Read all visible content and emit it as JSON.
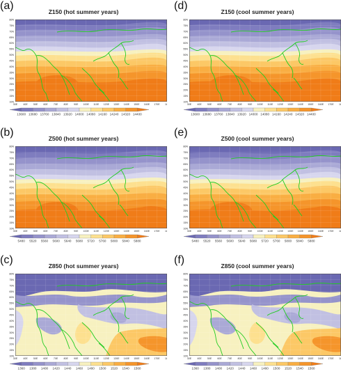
{
  "lat_labels": [
    "10N",
    "15N",
    "20N",
    "25N",
    "30N",
    "35N",
    "40N",
    "45N",
    "50N",
    "55N",
    "60N",
    "65N",
    "70N",
    "75N",
    "80N"
  ],
  "lon_labels": [
    "30E",
    "40E",
    "50E",
    "60E",
    "70E",
    "80E",
    "90E",
    "100E",
    "110E",
    "120E",
    "130E",
    "140E",
    "150E",
    "160E",
    "170E",
    "180"
  ],
  "panels": [
    {
      "letter": "(a)",
      "title": "Z150 (hot summer years)",
      "ticks": [
        "13600",
        "13680",
        "13760",
        "13840",
        "13920",
        "14000",
        "14080",
        "14160",
        "14240",
        "14320",
        "14400"
      ],
      "field": "z150"
    },
    {
      "letter": "(d)",
      "title": "Z150 (cool summer years)",
      "ticks": [
        "13600",
        "13680",
        "13760",
        "13840",
        "13920",
        "14000",
        "14080",
        "14160",
        "14240",
        "14320",
        "14400"
      ],
      "field": "z150"
    },
    {
      "letter": "(b)",
      "title": "Z500 (hot summer years)",
      "ticks": [
        "5480",
        "5520",
        "5560",
        "5600",
        "5640",
        "5680",
        "5720",
        "5760",
        "5800",
        "5840",
        "5880"
      ],
      "field": "z500"
    },
    {
      "letter": "(e)",
      "title": "Z500 (cool summer years)",
      "ticks": [
        "5480",
        "5520",
        "5560",
        "5600",
        "5640",
        "5680",
        "5720",
        "5760",
        "5800",
        "5840",
        "5880"
      ],
      "field": "z500"
    },
    {
      "letter": "(c)",
      "title": "Z850 (hot summer years)",
      "ticks": [
        "1360",
        "1380",
        "1400",
        "1420",
        "1440",
        "1460",
        "1480",
        "1500",
        "1520",
        "1540",
        "1560"
      ],
      "field": "z850"
    },
    {
      "letter": "(f)",
      "title": "Z850 (cool summer years)",
      "ticks": [
        "1360",
        "1380",
        "1400",
        "1420",
        "1440",
        "1460",
        "1480",
        "1500",
        "1520",
        "1540",
        "1560"
      ],
      "field": "z850"
    }
  ],
  "colors": {
    "palette": [
      "#6a68b2",
      "#7f7dbf",
      "#9593cb",
      "#aaa9d6",
      "#c1c0e2",
      "#d7d6ee",
      "#f7f1c0",
      "#fde08f",
      "#fcc866",
      "#f9ae43",
      "#f5952b",
      "#f07c18"
    ],
    "coast": "#22cc22"
  }
}
